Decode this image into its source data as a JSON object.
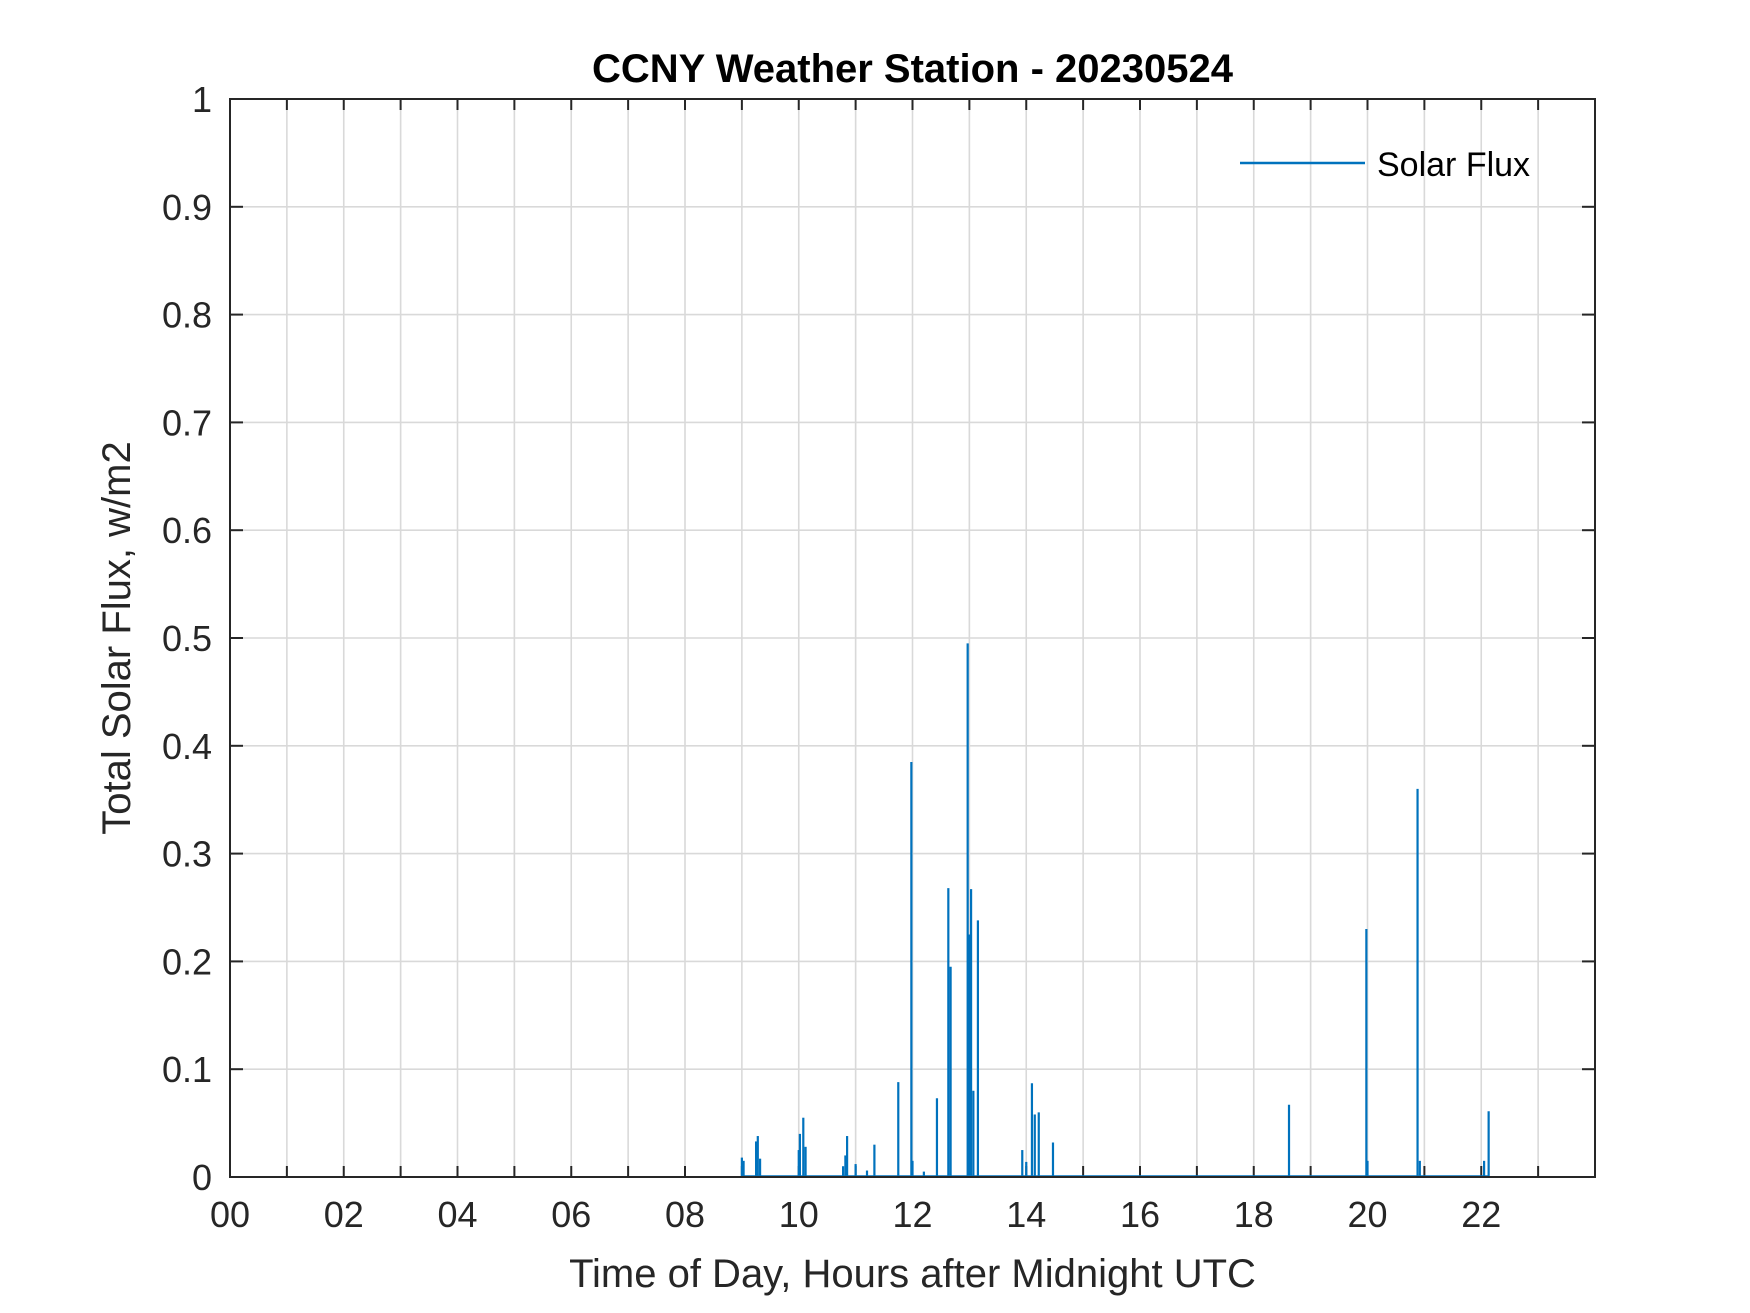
{
  "chart_data": {
    "type": "line",
    "title": "CCNY Weather Station - 20230524",
    "xlabel": "Time of Day, Hours after Midnight UTC",
    "ylabel": "Total Solar Flux, w/m2",
    "xlim": [
      0,
      24
    ],
    "ylim": [
      0,
      1
    ],
    "grid": true,
    "legend_position": "top-right",
    "x_ticks": [
      {
        "value": 0,
        "label": "00"
      },
      {
        "value": 2,
        "label": "02"
      },
      {
        "value": 4,
        "label": "04"
      },
      {
        "value": 6,
        "label": "06"
      },
      {
        "value": 8,
        "label": "08"
      },
      {
        "value": 10,
        "label": "10"
      },
      {
        "value": 12,
        "label": "12"
      },
      {
        "value": 14,
        "label": "14"
      },
      {
        "value": 16,
        "label": "16"
      },
      {
        "value": 18,
        "label": "18"
      },
      {
        "value": 20,
        "label": "20"
      },
      {
        "value": 22,
        "label": "22"
      }
    ],
    "x_minor_grid_step": 1,
    "y_ticks": [
      {
        "value": 0,
        "label": "0"
      },
      {
        "value": 0.1,
        "label": "0.1"
      },
      {
        "value": 0.2,
        "label": "0.2"
      },
      {
        "value": 0.3,
        "label": "0.3"
      },
      {
        "value": 0.4,
        "label": "0.4"
      },
      {
        "value": 0.5,
        "label": "0.5"
      },
      {
        "value": 0.6,
        "label": "0.6"
      },
      {
        "value": 0.7,
        "label": "0.7"
      },
      {
        "value": 0.8,
        "label": "0.8"
      },
      {
        "value": 0.9,
        "label": "0.9"
      },
      {
        "value": 1,
        "label": "1"
      }
    ],
    "series": [
      {
        "name": "Solar Flux",
        "color": "#0072BD",
        "spikes": [
          {
            "x": 9.0,
            "y": 0.018
          },
          {
            "x": 9.03,
            "y": 0.015
          },
          {
            "x": 9.25,
            "y": 0.033
          },
          {
            "x": 9.28,
            "y": 0.038
          },
          {
            "x": 9.32,
            "y": 0.017
          },
          {
            "x": 10.0,
            "y": 0.025
          },
          {
            "x": 10.02,
            "y": 0.04
          },
          {
            "x": 10.08,
            "y": 0.055
          },
          {
            "x": 10.12,
            "y": 0.028
          },
          {
            "x": 10.78,
            "y": 0.01
          },
          {
            "x": 10.82,
            "y": 0.02
          },
          {
            "x": 10.85,
            "y": 0.038
          },
          {
            "x": 11.0,
            "y": 0.012
          },
          {
            "x": 11.2,
            "y": 0.006
          },
          {
            "x": 11.33,
            "y": 0.03
          },
          {
            "x": 11.75,
            "y": 0.088
          },
          {
            "x": 11.98,
            "y": 0.385
          },
          {
            "x": 12.0,
            "y": 0.015
          },
          {
            "x": 12.2,
            "y": 0.005
          },
          {
            "x": 12.43,
            "y": 0.073
          },
          {
            "x": 12.63,
            "y": 0.268
          },
          {
            "x": 12.67,
            "y": 0.195
          },
          {
            "x": 12.97,
            "y": 0.495
          },
          {
            "x": 13.0,
            "y": 0.225
          },
          {
            "x": 13.03,
            "y": 0.267
          },
          {
            "x": 13.07,
            "y": 0.08
          },
          {
            "x": 13.15,
            "y": 0.238
          },
          {
            "x": 13.93,
            "y": 0.025
          },
          {
            "x": 14.0,
            "y": 0.014
          },
          {
            "x": 14.1,
            "y": 0.087
          },
          {
            "x": 14.15,
            "y": 0.058
          },
          {
            "x": 14.22,
            "y": 0.06
          },
          {
            "x": 14.47,
            "y": 0.032
          },
          {
            "x": 18.62,
            "y": 0.067
          },
          {
            "x": 19.98,
            "y": 0.23
          },
          {
            "x": 20.0,
            "y": 0.015
          },
          {
            "x": 20.88,
            "y": 0.36
          },
          {
            "x": 20.92,
            "y": 0.015
          },
          {
            "x": 22.05,
            "y": 0.015
          },
          {
            "x": 22.13,
            "y": 0.061
          }
        ]
      }
    ]
  }
}
